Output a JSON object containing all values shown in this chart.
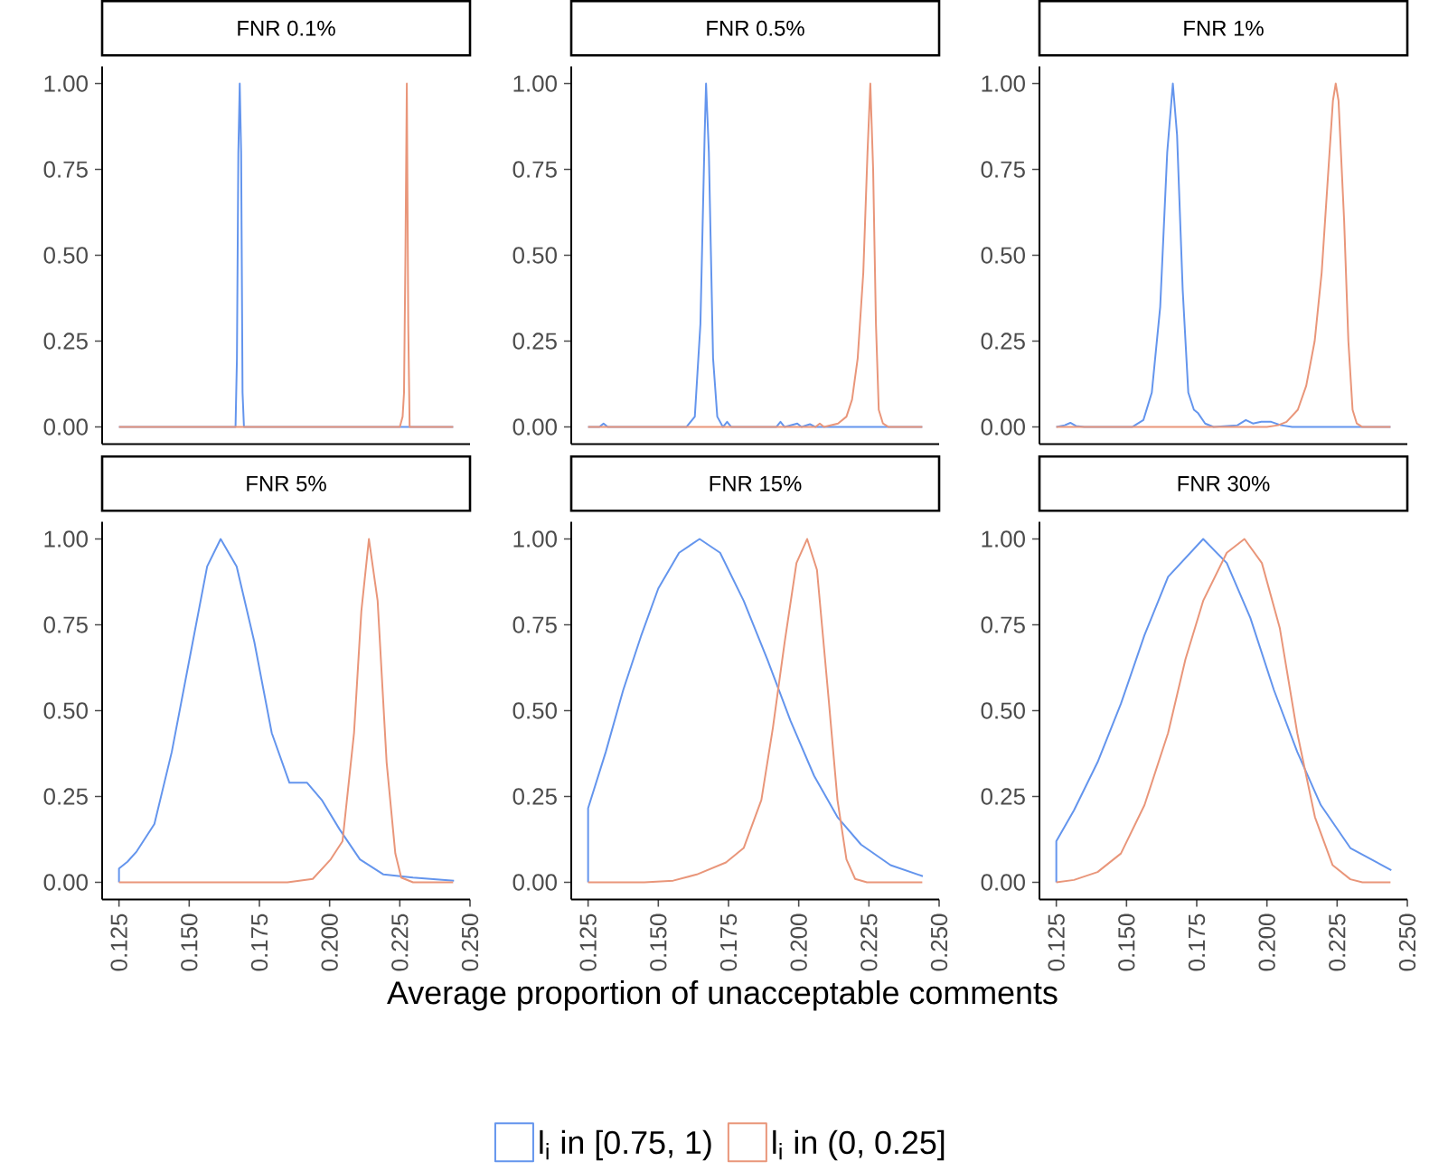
{
  "chart_data": [
    {
      "type": "line",
      "title": "FNR 0.1%",
      "xlim": [
        0.119,
        0.25
      ],
      "ylim": [
        -0.05,
        1.05
      ],
      "tick_labels": "y",
      "yticks": [
        {
          "value": 0,
          "label": "0.00"
        },
        {
          "value": 0.25,
          "label": "0.25"
        },
        {
          "value": 0.5,
          "label": "0.50"
        },
        {
          "value": 0.75,
          "label": "0.75"
        },
        {
          "value": 1,
          "label": "1.00"
        }
      ],
      "series": [
        {
          "color": "#6495ed",
          "x": [
            0.125,
            0.1665,
            0.167,
            0.1675,
            0.168,
            0.1685,
            0.169,
            0.1695,
            0.244
          ],
          "values": [
            0,
            0,
            0.2,
            0.8,
            1,
            0.8,
            0.1,
            0,
            0
          ]
        },
        {
          "color": "#e9967a",
          "x": [
            0.125,
            0.225,
            0.226,
            0.2265,
            0.227,
            0.2275,
            0.228,
            0.2285,
            0.244
          ],
          "values": [
            0,
            0,
            0.03,
            0.1,
            0.5,
            1,
            0.3,
            0,
            0
          ]
        }
      ]
    },
    {
      "type": "line",
      "title": "FNR 0.5%",
      "xlim": [
        0.119,
        0.25
      ],
      "ylim": [
        -0.05,
        1.05
      ],
      "tick_labels": "y",
      "yticks": [
        {
          "value": 0,
          "label": "0.00"
        },
        {
          "value": 0.25,
          "label": "0.25"
        },
        {
          "value": 0.5,
          "label": "0.50"
        },
        {
          "value": 0.75,
          "label": "0.75"
        },
        {
          "value": 1,
          "label": "1.00"
        }
      ],
      "series": [
        {
          "color": "#6495ed",
          "x": [
            0.125,
            0.129,
            0.1305,
            0.132,
            0.16,
            0.163,
            0.165,
            0.1665,
            0.167,
            0.168,
            0.1695,
            0.171,
            0.173,
            0.1745,
            0.176,
            0.192,
            0.1935,
            0.195,
            0.1995,
            0.201,
            0.204,
            0.206,
            0.244
          ],
          "values": [
            0,
            0,
            0.01,
            0,
            0,
            0.03,
            0.3,
            0.85,
            1,
            0.8,
            0.2,
            0.03,
            0,
            0.015,
            0,
            0,
            0.015,
            0,
            0.01,
            0,
            0.008,
            0,
            0
          ]
        },
        {
          "color": "#e9967a",
          "x": [
            0.125,
            0.206,
            0.2075,
            0.209,
            0.214,
            0.217,
            0.219,
            0.221,
            0.223,
            0.2245,
            0.2255,
            0.2265,
            0.2275,
            0.2285,
            0.23,
            0.232,
            0.244
          ],
          "values": [
            0,
            0,
            0.01,
            0,
            0.01,
            0.03,
            0.08,
            0.2,
            0.45,
            0.8,
            1,
            0.75,
            0.3,
            0.05,
            0.01,
            0,
            0
          ]
        }
      ]
    },
    {
      "type": "line",
      "title": "FNR 1%",
      "xlim": [
        0.119,
        0.25
      ],
      "ylim": [
        -0.05,
        1.05
      ],
      "tick_labels": "y",
      "yticks": [
        {
          "value": 0,
          "label": "0.00"
        },
        {
          "value": 0.25,
          "label": "0.25"
        },
        {
          "value": 0.5,
          "label": "0.50"
        },
        {
          "value": 0.75,
          "label": "0.75"
        },
        {
          "value": 1,
          "label": "1.00"
        }
      ],
      "series": [
        {
          "color": "#6495ed",
          "x": [
            0.125,
            0.128,
            0.13,
            0.132,
            0.135,
            0.152,
            0.156,
            0.159,
            0.162,
            0.1645,
            0.1665,
            0.168,
            0.17,
            0.172,
            0.174,
            0.1755,
            0.178,
            0.181,
            0.1895,
            0.1925,
            0.195,
            0.198,
            0.2015,
            0.205,
            0.209,
            0.244
          ],
          "values": [
            0,
            0.005,
            0.012,
            0.003,
            0,
            0,
            0.02,
            0.1,
            0.35,
            0.8,
            1,
            0.85,
            0.4,
            0.1,
            0.05,
            0.04,
            0.01,
            0,
            0.005,
            0.02,
            0.01,
            0.015,
            0.015,
            0.005,
            0,
            0
          ]
        },
        {
          "color": "#e9967a",
          "x": [
            0.125,
            0.2,
            0.204,
            0.207,
            0.211,
            0.214,
            0.217,
            0.2195,
            0.2215,
            0.2235,
            0.2245,
            0.2255,
            0.2275,
            0.229,
            0.2305,
            0.232,
            0.234,
            0.244
          ],
          "values": [
            0,
            0,
            0.005,
            0.015,
            0.05,
            0.12,
            0.25,
            0.45,
            0.7,
            0.95,
            1,
            0.95,
            0.6,
            0.25,
            0.05,
            0.01,
            0,
            0
          ]
        }
      ]
    },
    {
      "type": "line",
      "title": "FNR 5%",
      "xlim": [
        0.119,
        0.25
      ],
      "ylim": [
        -0.05,
        1.05
      ],
      "yticks": [
        {
          "value": 0,
          "label": "0.00"
        },
        {
          "value": 0.25,
          "label": "0.25"
        },
        {
          "value": 0.5,
          "label": "0.50"
        },
        {
          "value": 0.75,
          "label": "0.75"
        },
        {
          "value": 1,
          "label": "1.00"
        }
      ],
      "xticks": [
        {
          "value": 0.125,
          "label": "0.125"
        },
        {
          "value": 0.15,
          "label": "0.150"
        },
        {
          "value": 0.175,
          "label": "0.175"
        },
        {
          "value": 0.2,
          "label": "0.200"
        },
        {
          "value": 0.225,
          "label": "0.225"
        },
        {
          "value": 0.25,
          "label": "0.250"
        }
      ],
      "series": [
        {
          "color": "#6495ed",
          "x": [
            0.125,
            0.125,
            0.128,
            0.1313,
            0.1376,
            0.1438,
            0.1501,
            0.1564,
            0.1612,
            0.1669,
            0.1732,
            0.1794,
            0.1857,
            0.192,
            0.1972,
            0.2035,
            0.2108,
            0.2192,
            0.2297,
            0.2443
          ],
          "values": [
            0,
            0.04,
            0.06,
            0.09,
            0.17,
            0.38,
            0.65,
            0.92,
            1,
            0.92,
            0.7,
            0.435,
            0.29,
            0.29,
            0.24,
            0.155,
            0.067,
            0.023,
            0.014,
            0.005
          ]
        },
        {
          "color": "#e9967a",
          "x": [
            0.125,
            0.185,
            0.194,
            0.2004,
            0.2046,
            0.2087,
            0.2113,
            0.214,
            0.2171,
            0.2203,
            0.2234,
            0.2255,
            0.2297,
            0.244
          ],
          "values": [
            0,
            0,
            0.01,
            0.067,
            0.12,
            0.435,
            0.79,
            1,
            0.82,
            0.35,
            0.084,
            0.014,
            0,
            0
          ]
        }
      ]
    },
    {
      "type": "line",
      "title": "FNR 15%",
      "xlabel": "Average proportion of unacceptable comments",
      "legend": "bottom",
      "xlim": [
        0.119,
        0.25
      ],
      "ylim": [
        -0.05,
        1.05
      ],
      "yticks": [
        {
          "value": 0,
          "label": "0.00"
        },
        {
          "value": 0.25,
          "label": "0.25"
        },
        {
          "value": 0.5,
          "label": "0.50"
        },
        {
          "value": 0.75,
          "label": "0.75"
        },
        {
          "value": 1,
          "label": "1.00"
        }
      ],
      "xticks": [
        {
          "value": 0.125,
          "label": "0.125"
        },
        {
          "value": 0.15,
          "label": "0.150"
        },
        {
          "value": 0.175,
          "label": "0.175"
        },
        {
          "value": 0.2,
          "label": "0.200"
        },
        {
          "value": 0.225,
          "label": "0.225"
        },
        {
          "value": 0.25,
          "label": "0.250"
        }
      ],
      "series": [
        {
          "name": "l$_{i}$ in [0.75, 1)",
          "color": "#6495ed",
          "x": [
            0.125,
            0.125,
            0.1313,
            0.1375,
            0.1438,
            0.15,
            0.1574,
            0.1647,
            0.172,
            0.1804,
            0.1888,
            0.1971,
            0.2055,
            0.2138,
            0.2222,
            0.2327,
            0.2442
          ],
          "values": [
            0,
            0.216,
            0.38,
            0.56,
            0.716,
            0.856,
            0.96,
            1,
            0.96,
            0.82,
            0.65,
            0.47,
            0.31,
            0.19,
            0.11,
            0.05,
            0.018
          ]
        },
        {
          "name": "l$_{i}$ in (0, 0.25]",
          "color": "#e9967a",
          "x": [
            0.125,
            0.145,
            0.1553,
            0.1637,
            0.1741,
            0.1804,
            0.1867,
            0.1908,
            0.195,
            0.1992,
            0.203,
            0.2065,
            0.2107,
            0.2138,
            0.217,
            0.2201,
            0.2243,
            0.244
          ],
          "values": [
            0,
            0,
            0.005,
            0.023,
            0.058,
            0.1,
            0.24,
            0.45,
            0.7,
            0.93,
            1,
            0.91,
            0.53,
            0.24,
            0.067,
            0.01,
            0,
            0
          ]
        }
      ]
    },
    {
      "type": "line",
      "title": "FNR 30%",
      "xlim": [
        0.119,
        0.25
      ],
      "ylim": [
        -0.05,
        1.05
      ],
      "yticks": [
        {
          "value": 0,
          "label": "0.00"
        },
        {
          "value": 0.25,
          "label": "0.25"
        },
        {
          "value": 0.5,
          "label": "0.50"
        },
        {
          "value": 0.75,
          "label": "0.75"
        },
        {
          "value": 1,
          "label": "1.00"
        }
      ],
      "xticks": [
        {
          "value": 0.125,
          "label": "0.125"
        },
        {
          "value": 0.15,
          "label": "0.150"
        },
        {
          "value": 0.175,
          "label": "0.175"
        },
        {
          "value": 0.2,
          "label": "0.200"
        },
        {
          "value": 0.225,
          "label": "0.225"
        },
        {
          "value": 0.25,
          "label": "0.250"
        }
      ],
      "series": [
        {
          "color": "#6495ed",
          "x": [
            0.125,
            0.125,
            0.1313,
            0.1397,
            0.148,
            0.1564,
            0.1648,
            0.1773,
            0.1857,
            0.1941,
            0.2025,
            0.2108,
            0.2192,
            0.2297,
            0.2443
          ],
          "values": [
            0,
            0.12,
            0.21,
            0.35,
            0.52,
            0.72,
            0.89,
            1,
            0.93,
            0.77,
            0.56,
            0.38,
            0.225,
            0.1,
            0.035
          ]
        },
        {
          "color": "#e9967a",
          "x": [
            0.125,
            0.1313,
            0.1397,
            0.148,
            0.1564,
            0.1648,
            0.171,
            0.1773,
            0.1857,
            0.192,
            0.1982,
            0.2046,
            0.2108,
            0.2171,
            0.2234,
            0.2297,
            0.234,
            0.244
          ],
          "values": [
            0,
            0.007,
            0.03,
            0.084,
            0.225,
            0.435,
            0.65,
            0.82,
            0.96,
            1,
            0.93,
            0.74,
            0.435,
            0.19,
            0.05,
            0.009,
            0,
            0
          ]
        }
      ]
    }
  ]
}
